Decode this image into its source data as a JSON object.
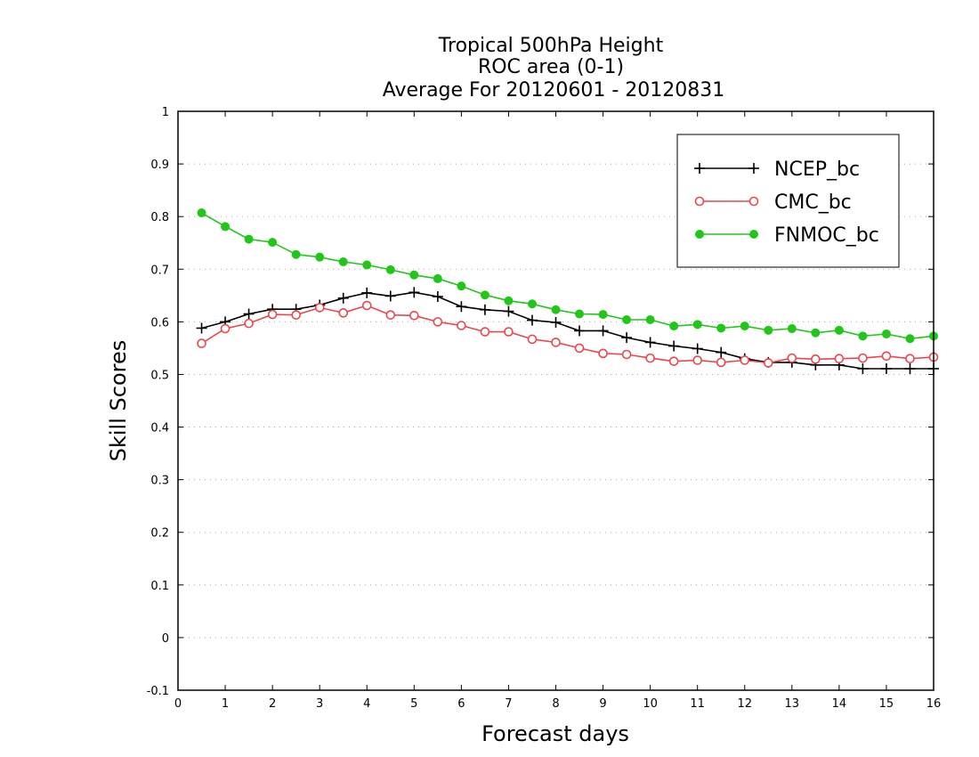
{
  "chart_data": {
    "type": "line",
    "title": [
      "Tropical 500hPa Height",
      "ROC area (0-1)",
      "Average For 20120601 - 20120831"
    ],
    "xlabel": "Forecast days",
    "ylabel": "Skill Scores",
    "xlim": [
      0,
      16
    ],
    "ylim": [
      -0.1,
      1
    ],
    "xticks": [
      0,
      1,
      2,
      3,
      4,
      5,
      6,
      7,
      8,
      9,
      10,
      11,
      12,
      13,
      14,
      15,
      16
    ],
    "yticks": [
      -0.1,
      0,
      0.1,
      0.2,
      0.3,
      0.4,
      0.5,
      0.6,
      0.7,
      0.8,
      0.9,
      1
    ],
    "ytick_labels": [
      "-0.1",
      "0",
      "0.1",
      "0.2",
      "0.3",
      "0.4",
      "0.5",
      "0.6",
      "0.7",
      "0.8",
      "0.9",
      "1"
    ],
    "grid": true,
    "legend_position": "top-right",
    "x": [
      0.5,
      1.0,
      1.5,
      2.0,
      2.5,
      3.0,
      3.5,
      4.0,
      4.5,
      5.0,
      5.5,
      6.0,
      6.5,
      7.0,
      7.5,
      8.0,
      8.5,
      9.0,
      9.5,
      10.0,
      10.5,
      11.0,
      11.5,
      12.0,
      12.5,
      13.0,
      13.5,
      14.0,
      14.5,
      15.0,
      15.5,
      16.0
    ],
    "series": [
      {
        "name": "NCEP_bc",
        "color": "#000000",
        "marker": "plus",
        "values": [
          0.588,
          0.6,
          0.615,
          0.624,
          0.624,
          0.632,
          0.645,
          0.655,
          0.649,
          0.656,
          0.648,
          0.629,
          0.623,
          0.62,
          0.603,
          0.599,
          0.583,
          0.583,
          0.57,
          0.561,
          0.554,
          0.549,
          0.542,
          0.53,
          0.523,
          0.523,
          0.518,
          0.518,
          0.511,
          0.511,
          0.511,
          0.511
        ]
      },
      {
        "name": "CMC_bc",
        "color": "#e8484d",
        "marker": "open-circle",
        "values": [
          0.559,
          0.587,
          0.597,
          0.614,
          0.613,
          0.627,
          0.617,
          0.631,
          0.613,
          0.612,
          0.6,
          0.593,
          0.581,
          0.581,
          0.567,
          0.561,
          0.55,
          0.54,
          0.538,
          0.531,
          0.525,
          0.527,
          0.523,
          0.527,
          0.522,
          0.531,
          0.529,
          0.53,
          0.531,
          0.535,
          0.53,
          0.533
        ]
      },
      {
        "name": "FNMOC_bc",
        "color": "#22c61a",
        "marker": "filled-circle",
        "values": [
          0.807,
          0.781,
          0.757,
          0.751,
          0.728,
          0.723,
          0.714,
          0.708,
          0.699,
          0.689,
          0.682,
          0.668,
          0.651,
          0.64,
          0.634,
          0.623,
          0.615,
          0.614,
          0.604,
          0.604,
          0.592,
          0.595,
          0.588,
          0.592,
          0.584,
          0.587,
          0.579,
          0.584,
          0.573,
          0.577,
          0.568,
          0.573
        ]
      }
    ]
  }
}
